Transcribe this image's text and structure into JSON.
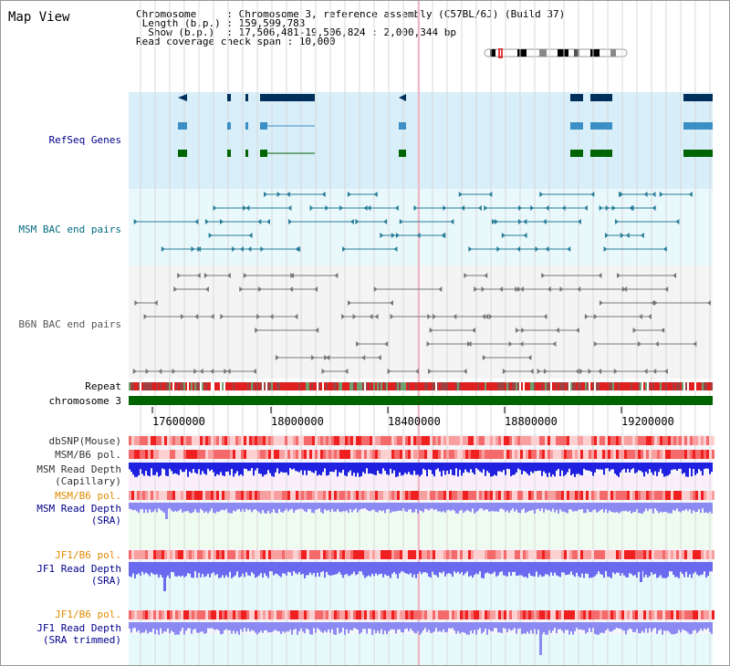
{
  "window": {
    "title": "Map View"
  },
  "header": {
    "lines": [
      "Chromosome     : Chromosome 3, reference assembly (C57BL/6J) (Build 37)",
      " Length (b.p.) : 159,599,783",
      "  Show (b.p.)  : 17,506,481-19,506,824 : 2,000,344 bp",
      "Read coverage check span : 10,000"
    ]
  },
  "tracks": {
    "refseq": "RefSeq Genes",
    "msm_bac": "MSM BAC end pairs",
    "b6n_bac": "B6N BAC end pairs",
    "repeat": "Repeat",
    "chromosome": "chromosome 3",
    "dbsnp": "dbSNP(Mouse)",
    "msm_b6_pol_1": "MSM/B6 pol.",
    "msm_depth_cap_1": "MSM Read Depth",
    "msm_depth_cap_2": "(Capillary)",
    "msm_b6_pol_2": "MSM/B6 pol.",
    "msm_depth_sra_1": "MSM Read Depth",
    "msm_depth_sra_2": "(SRA)",
    "jf1_b6_pol_1": "JF1/B6 pol.",
    "jf1_depth_sra_1": "JF1 Read Depth",
    "jf1_depth_sra_2": "(SRA)",
    "jf1_b6_pol_2": "JF1/B6 pol.",
    "jf1_depth_trim_1": "JF1 Read Depth",
    "jf1_depth_trim_2": "(SRA trimmed)"
  },
  "axis": {
    "ticks": [
      "17600000",
      "18000000",
      "18400000",
      "18800000",
      "19200000"
    ]
  },
  "colors": {
    "refseq_bg": "#d8eef9",
    "msm_bac_bg": "#e8f8fb",
    "b6n_bac_bg": "#f4f4f4",
    "chromosome": "#006400",
    "msm_label": "#006a80",
    "b6n_label": "#555555",
    "pol_orange": "#e08a00",
    "blue_label": "#00008b",
    "snp_red": "#f04040",
    "depth_blue": "#2020e0",
    "depth_light": "#8080f0"
  }
}
